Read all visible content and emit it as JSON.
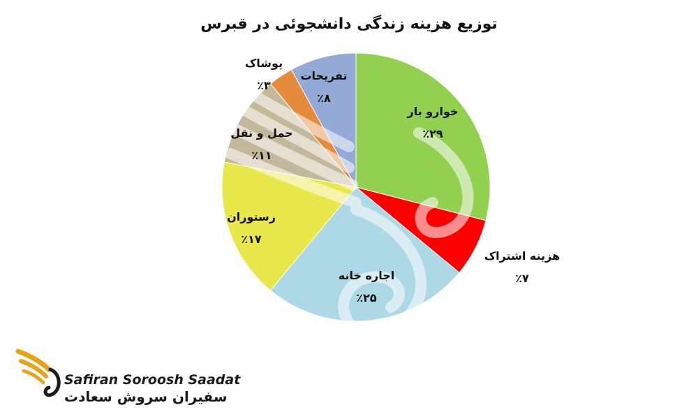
{
  "chart_data": {
    "type": "pie",
    "title": "توزیع هزینه زندگی دانشجوئی در قبرس",
    "categories": [
      "خوارو بار",
      "هزینه اشتراک",
      "اجاره خانه",
      "رستوران",
      "حمل و نقل",
      "پوشاک",
      "تفریحات"
    ],
    "values": [
      29,
      7,
      25,
      17,
      11,
      3,
      8
    ],
    "value_labels": [
      "٪۲۹",
      "٪۷",
      "٪۲۵",
      "٪۱۷",
      "٪۱۱",
      "٪۳",
      "٪۸"
    ],
    "colors": [
      "#92D050",
      "#FF0000",
      "#ADD8E6",
      "#E8E84A",
      "#C4B89A",
      "#E68A3C",
      "#93A9D6"
    ],
    "legend": "none"
  },
  "logo": {
    "name_en": "Safiran Soroosh Saadat",
    "name_fa": "سفیران سروش سعادت",
    "icon": "golden-wing-icon",
    "accent": "#E8A317"
  }
}
